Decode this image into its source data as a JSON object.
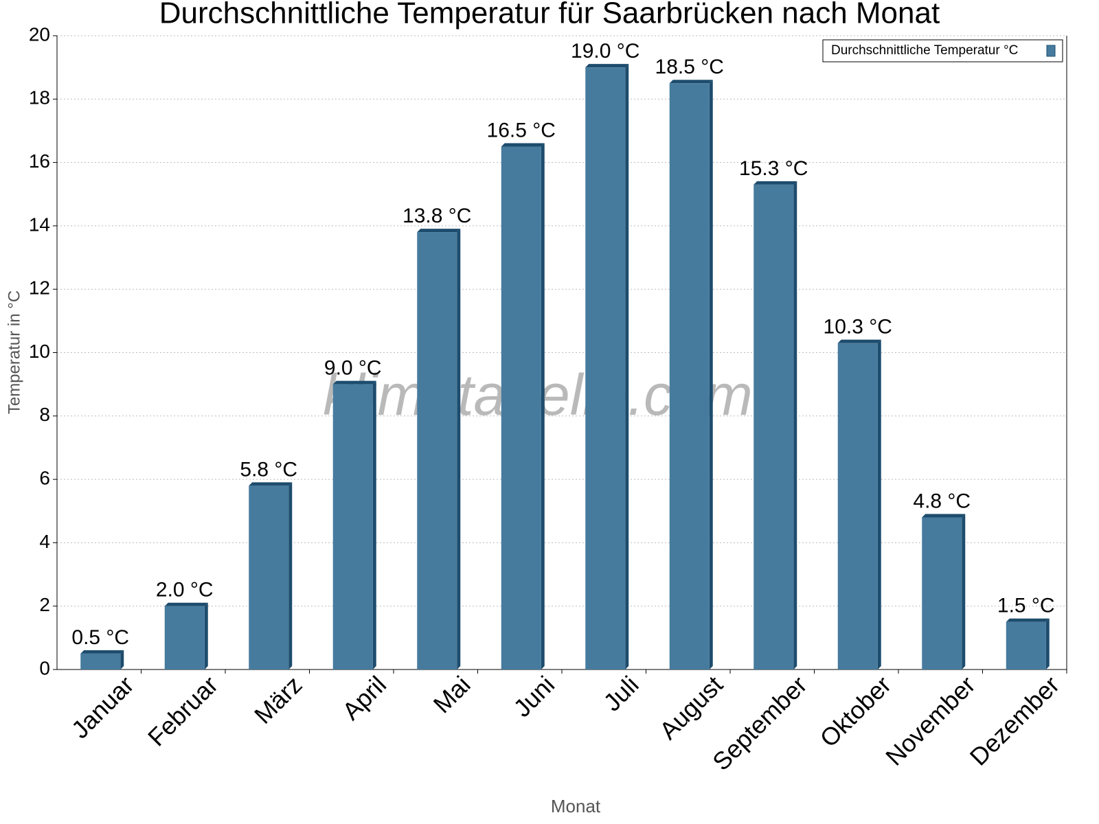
{
  "chart_data": {
    "type": "bar",
    "title": "Durchschnittliche Temperatur für Saarbrücken nach Monat",
    "x_label": "Monat",
    "y_label": "Temperatur in °C",
    "watermark": "klimatabelle.com",
    "categories": [
      "Januar",
      "Februar",
      "März",
      "April",
      "Mai",
      "Juni",
      "Juli",
      "August",
      "September",
      "Oktober",
      "November",
      "Dezember"
    ],
    "series": [
      {
        "name": "Durchschnittliche Temperatur °C",
        "color": "#467b9e",
        "values": [
          0.5,
          2.0,
          5.8,
          9.0,
          13.8,
          16.5,
          19.0,
          18.5,
          15.3,
          10.3,
          4.8,
          1.5
        ],
        "value_labels": [
          "0.5 °C",
          "2.0 °C",
          "5.8 °C",
          "9.0 °C",
          "13.8 °C",
          "16.5 °C",
          "19.0 °C",
          "18.5 °C",
          "15.3 °C",
          "10.3 °C",
          "4.8 °C",
          "1.5 °C"
        ]
      }
    ],
    "ylim": [
      0,
      20
    ],
    "yticks": [
      0,
      2,
      4,
      6,
      8,
      10,
      12,
      14,
      16,
      18,
      20
    ],
    "grid": true,
    "legend": "top-right"
  }
}
